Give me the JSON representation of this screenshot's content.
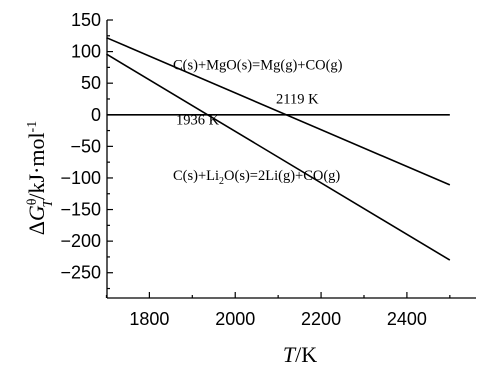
{
  "chart_data": {
    "type": "line",
    "xlabel": {
      "main": "T",
      "unit": "/K"
    },
    "ylabel": {
      "delta": "Δ",
      "G": "G",
      "sub": "T",
      "sup": "θ",
      "unit": "/kJ·mol",
      "unit_sup": "-1"
    },
    "xlim": [
      1650,
      2540
    ],
    "ylim": [
      -290,
      150
    ],
    "x_ticks": [
      1800,
      2000,
      2200,
      2400
    ],
    "y_ticks": [
      150,
      100,
      50,
      0,
      -50,
      -100,
      -150,
      -200,
      -250
    ],
    "x_tick_labels": [
      "1800",
      "2000",
      "2200",
      "2400"
    ],
    "y_tick_labels": [
      "150",
      "100",
      "50",
      "0",
      "−50",
      "−100",
      "−150",
      "−200",
      "−250"
    ],
    "series": [
      {
        "x": [
          1700,
          2500
        ],
        "y": [
          122,
          -111
        ]
      },
      {
        "x": [
          1700,
          2500
        ],
        "y": [
          96,
          -230
        ]
      }
    ],
    "zero_line": {
      "y": 0,
      "x": [
        1700,
        2500
      ]
    },
    "annotations": [
      {
        "id": "mgo",
        "text": "C(s)+MgO(s)=Mg(g)+CO(g)",
        "x": 1855,
        "y": 72
      },
      {
        "id": "t1",
        "text": "2119 K",
        "x": 2095,
        "y": 18
      },
      {
        "id": "t2",
        "text": "1936 K",
        "x": 1862,
        "y": -15
      },
      {
        "id": "li2o",
        "text_parts": [
          "C(s)+Li",
          "2",
          "O(s)=2Li(g)+CO(g)"
        ],
        "x": 1855,
        "y": -103
      }
    ]
  }
}
